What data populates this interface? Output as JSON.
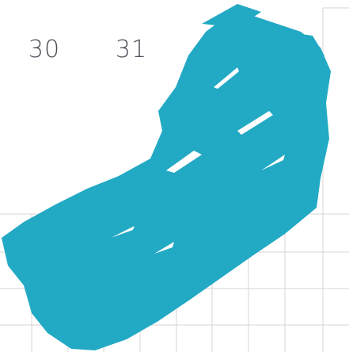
{
  "dates": [
    "30",
    "31"
  ]
}
